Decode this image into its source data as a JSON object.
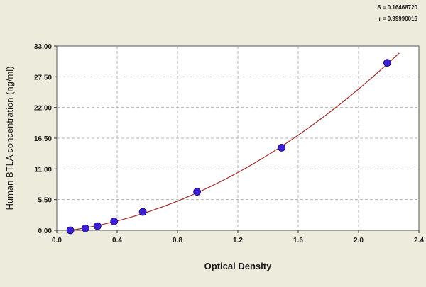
{
  "colors": {
    "background": "#ecebdc",
    "plot_background": "#ffffff",
    "curve": "#a52a2a",
    "points": "#3b1fd1",
    "grid": "#b5b5b5"
  },
  "chart_data": {
    "type": "scatter",
    "xlabel": "Optical Density",
    "ylabel": "Human BTLA concentration (ng/ml)",
    "xlim": [
      0,
      2.4
    ],
    "ylim": [
      0,
      33
    ],
    "x_ticks": [
      0.0,
      0.4,
      0.8,
      1.2,
      1.6,
      2.0,
      2.4
    ],
    "x_tick_labels": [
      "0.0",
      "0.4",
      "0.8",
      "1.2",
      "1.6",
      "2.0",
      "2.4"
    ],
    "y_ticks": [
      0,
      5.5,
      11,
      16.5,
      22,
      27.5,
      33
    ],
    "y_tick_labels": [
      "0.00",
      "5.50",
      "11.00",
      "16.50",
      "22.00",
      "27.50",
      "33.00"
    ],
    "grid": true,
    "grid_style": "dashed",
    "stats": [
      "S = 0.16468720",
      "r = 0.99990016"
    ],
    "series": [
      {
        "x": [
          0.09,
          0.19,
          0.27,
          0.38,
          0.57,
          0.93,
          1.49,
          2.19
        ],
        "y": [
          0.0,
          0.35,
          0.75,
          1.6,
          3.3,
          6.9,
          14.8,
          30.0
        ]
      }
    ],
    "fit_curve": {
      "type": "quadratic",
      "coefficients": [
        -0.3,
        3.0,
        4.9
      ],
      "x_range": [
        0.09,
        2.27
      ]
    }
  }
}
